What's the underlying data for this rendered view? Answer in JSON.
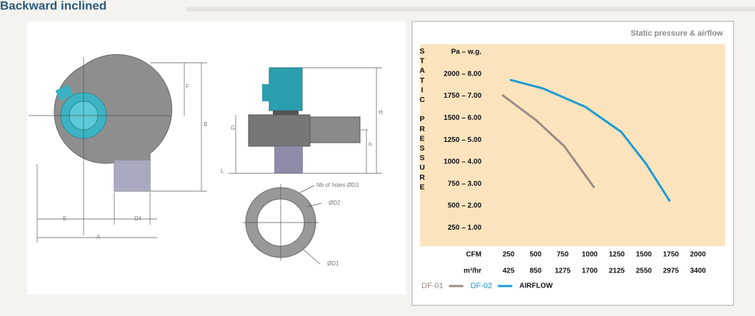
{
  "header": {
    "title": "Backward inclined"
  },
  "drawing": {
    "labels": [
      "F",
      "B",
      "E",
      "D4",
      "A",
      "G",
      "H",
      "h",
      "L",
      "Nb of holes ØD3",
      "ØD2",
      "ØD1"
    ]
  },
  "chart_data": {
    "type": "line",
    "title": "Static pressure & airflow",
    "y_label": "STATIC PRESSURE",
    "y_unit_label": "Pa – w.g.",
    "x_label": "CFM",
    "x2_label": "m³/hr",
    "xlim": [
      105,
      2250
    ],
    "ylim": [
      40,
      2340
    ],
    "xticks": [
      250,
      500,
      750,
      1000,
      1250,
      1500,
      1750,
      2000
    ],
    "x2ticks": [
      425,
      850,
      1275,
      1700,
      2125,
      2550,
      2975,
      3400
    ],
    "yticks": [
      {
        "value": 2000,
        "label": "2000 – 8.00"
      },
      {
        "value": 1750,
        "label": "1750 – 7.00"
      },
      {
        "value": 1500,
        "label": "1500 – 6.00"
      },
      {
        "value": 1250,
        "label": "1250 – 5.00"
      },
      {
        "value": 1000,
        "label": "1000 – 4.00"
      },
      {
        "value": 750,
        "label": "750 – 3.00"
      },
      {
        "value": 500,
        "label": "500 – 2.00"
      },
      {
        "value": 250,
        "label": "250 – 1.00"
      }
    ],
    "series": [
      {
        "name": "DF-01",
        "color": "#9b8a85",
        "x": [
          190,
          500,
          765,
          1042
        ],
        "values": [
          1764,
          1479,
          1178,
          705
        ]
      },
      {
        "name": "DF-02",
        "color": "#1a9ad6",
        "x": [
          263,
          567,
          962,
          1292,
          1523,
          1741
        ],
        "values": [
          1935,
          1837,
          1625,
          1340,
          974,
          550
        ]
      }
    ],
    "legend_note": "AIRFLOW"
  }
}
